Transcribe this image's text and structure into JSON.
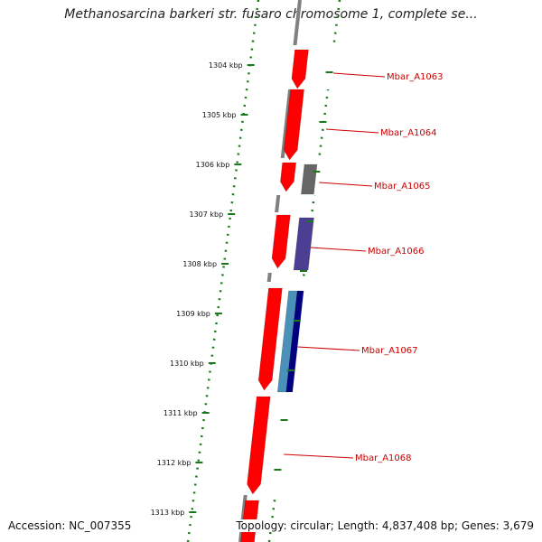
{
  "title": "Methanosarcina barkeri str. fusaro chromosome 1, complete se...",
  "accession_label": "Accession: NC_007355",
  "summary_label": "Topology: circular; Length: 4,837,408 bp; Genes: 3,679",
  "colors": {
    "backbone": "#808080",
    "dotted_ring": "#1a7a1a",
    "forward_gene": "#ff0000",
    "gene_label": "#cc0000",
    "label_line": "#cc0000",
    "grey_feature": "#666666",
    "purple_feature": "#4b3f94",
    "light_blue_feature": "#4a90b8",
    "navy_feature": "#000080"
  },
  "scale": {
    "unit": "kbp",
    "ticks": [
      {
        "label": "1304 kbp"
      },
      {
        "label": "1305 kbp"
      },
      {
        "label": "1306 kbp"
      },
      {
        "label": "1307 kbp"
      },
      {
        "label": "1308 kbp"
      },
      {
        "label": "1309 kbp"
      },
      {
        "label": "1310 kbp"
      },
      {
        "label": "1311 kbp"
      },
      {
        "label": "1312 kbp"
      },
      {
        "label": "1313 kbp"
      }
    ]
  },
  "genes": [
    {
      "name": "Mbar_A1063"
    },
    {
      "name": "Mbar_A1064"
    },
    {
      "name": "Mbar_A1065"
    },
    {
      "name": "Mbar_A1066"
    },
    {
      "name": "Mbar_A1067"
    },
    {
      "name": "Mbar_A1068"
    }
  ]
}
